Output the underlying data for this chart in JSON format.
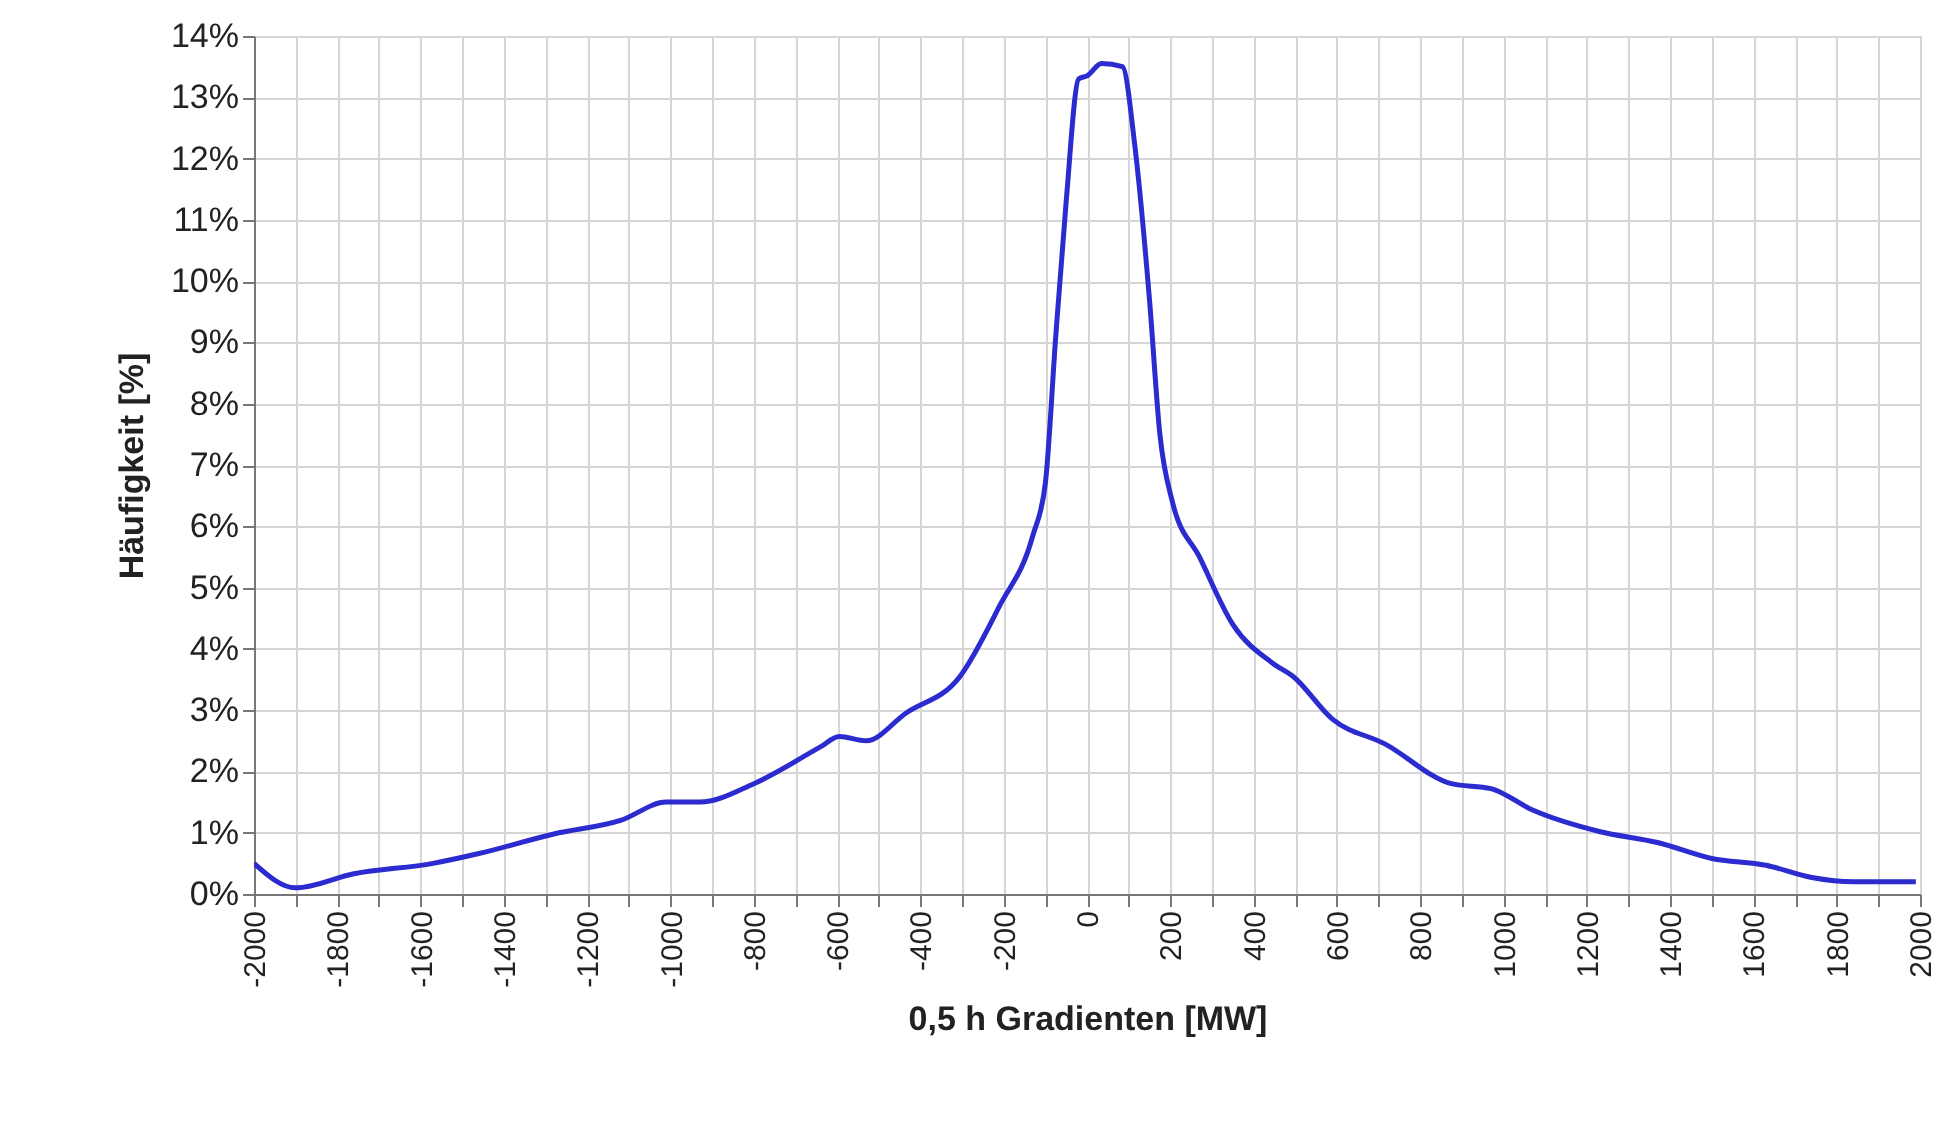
{
  "chart_data": {
    "type": "line",
    "xlabel": "0,5 h Gradienten [MW]",
    "ylabel": "Häufigkeit [%]",
    "xlim": [
      -2000,
      2000
    ],
    "ylim": [
      0,
      14
    ],
    "xticks": [
      -2000,
      {
        "value": -1900,
        "label": null
      },
      -1800,
      {
        "value": -1700,
        "label": null
      },
      -1600,
      {
        "value": -1500,
        "label": null
      },
      -1400,
      {
        "value": -1300,
        "label": null
      },
      -1200,
      {
        "value": -1100,
        "label": null
      },
      -1000,
      {
        "value": -900,
        "label": null
      },
      -800,
      {
        "value": -700,
        "label": null
      },
      -600,
      {
        "value": -500,
        "label": null
      },
      -400,
      {
        "value": -300,
        "label": null
      },
      -200,
      {
        "value": -100,
        "label": null
      },
      0,
      {
        "value": 100,
        "label": null
      },
      200,
      {
        "value": 300,
        "label": null
      },
      400,
      {
        "value": 500,
        "label": null
      },
      600,
      {
        "value": 700,
        "label": null
      },
      800,
      {
        "value": 900,
        "label": null
      },
      1000,
      {
        "value": 1100,
        "label": null
      },
      1200,
      {
        "value": 1300,
        "label": null
      },
      1400,
      {
        "value": 1500,
        "label": null
      },
      1600,
      {
        "value": 1700,
        "label": null
      },
      1800,
      {
        "value": 1900,
        "label": null
      },
      2000
    ],
    "yticks": [
      {
        "value": 0,
        "label": "0%"
      },
      {
        "value": 1,
        "label": "1%"
      },
      {
        "value": 2,
        "label": "2%"
      },
      {
        "value": 3,
        "label": "3%"
      },
      {
        "value": 4,
        "label": "4%"
      },
      {
        "value": 5,
        "label": "5%"
      },
      {
        "value": 6,
        "label": "6%"
      },
      {
        "value": 7,
        "label": "7%"
      },
      {
        "value": 8,
        "label": "8%"
      },
      {
        "value": 9,
        "label": "9%"
      },
      {
        "value": 10,
        "label": "10%"
      },
      {
        "value": 11,
        "label": "11%"
      },
      {
        "value": 12,
        "label": "12%"
      },
      {
        "value": 13,
        "label": "13%"
      },
      {
        "value": 14,
        "label": "14%"
      }
    ],
    "grid": true,
    "marker": "none",
    "line_style": "solid",
    "x": [
      -2000,
      -1900,
      -1760,
      -1570,
      -1460,
      -1280,
      -1120,
      -1010,
      -930,
      -800,
      -640,
      -595,
      -530,
      -435,
      -305,
      -210,
      -130,
      -100,
      -75,
      -50,
      -20,
      0,
      35,
      85,
      115,
      150,
      175,
      205,
      270,
      350,
      445,
      495,
      590,
      715,
      875,
      970,
      1070,
      1230,
      1370,
      1500,
      1630,
      1740,
      1840,
      1990
    ],
    "series": [
      {
        "color": "#2b2bd0",
        "values": [
          0.5,
          0.1,
          0.33,
          0.5,
          0.66,
          0.98,
          1.2,
          1.5,
          1.5,
          1.8,
          2.4,
          2.57,
          2.5,
          2.95,
          3.55,
          4.7,
          5.85,
          6.7,
          9.1,
          11.3,
          13.3,
          13.35,
          13.55,
          13.5,
          12.2,
          9.7,
          7.5,
          6.4,
          5.5,
          4.4,
          3.77,
          3.55,
          2.85,
          2.45,
          1.8,
          1.72,
          1.37,
          1.02,
          0.84,
          0.58,
          0.47,
          0.27,
          0.2,
          0.2
        ]
      }
    ]
  }
}
